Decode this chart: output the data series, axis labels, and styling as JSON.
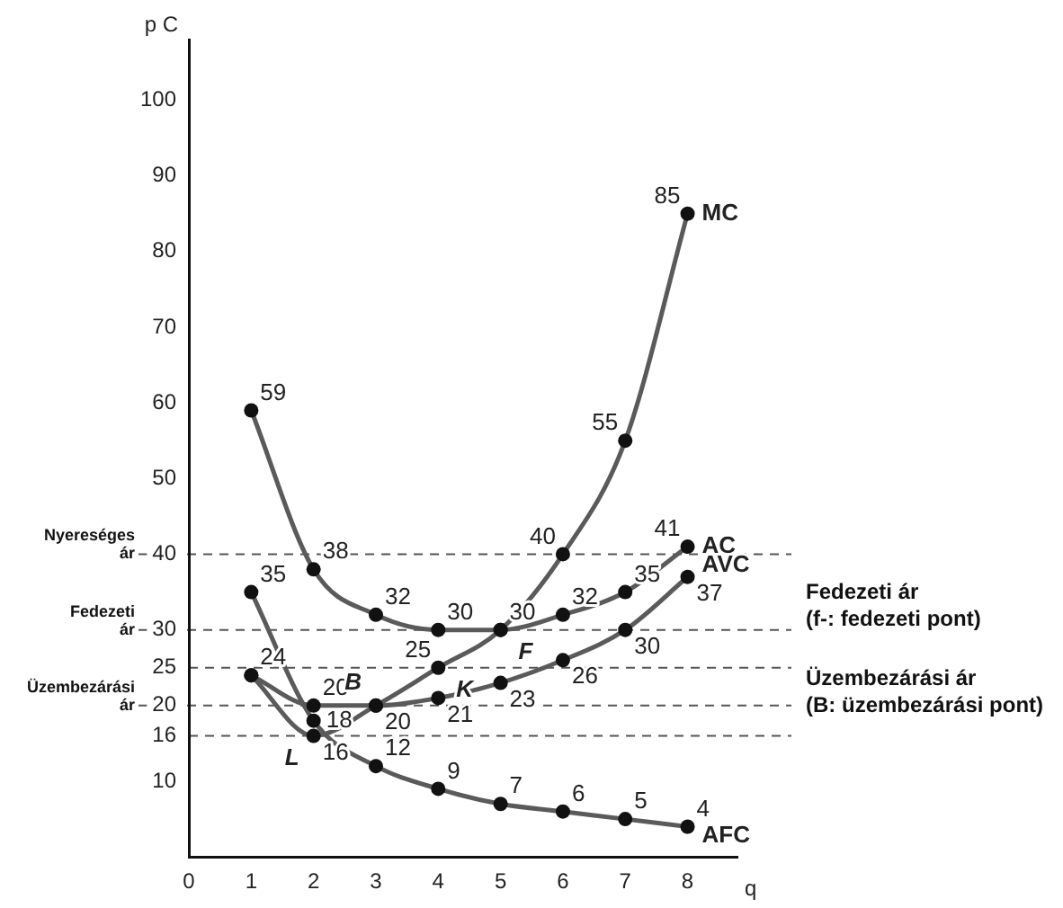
{
  "chart_data": {
    "type": "line",
    "xlabel": "q",
    "ylabel": "p C",
    "x": [
      1,
      2,
      3,
      4,
      5,
      6,
      7,
      8
    ],
    "series": [
      {
        "name": "MC",
        "color": "#5a5a5a",
        "values": [
          24,
          16,
          20,
          25,
          30,
          40,
          55,
          85
        ],
        "value_labels": [
          null,
          "16",
          null,
          "25",
          null,
          "40",
          "55",
          "85"
        ]
      },
      {
        "name": "AC",
        "color": "#5a5a5a",
        "values": [
          59,
          38,
          32,
          30,
          30,
          32,
          35,
          41
        ],
        "value_labels": [
          "59",
          "38",
          "32",
          "30",
          "30",
          "32",
          "35",
          "41"
        ]
      },
      {
        "name": "AVC",
        "color": "#5a5a5a",
        "values": [
          24,
          20,
          20,
          21,
          23,
          26,
          30,
          37
        ],
        "value_labels": [
          "24",
          "20",
          "20",
          "21",
          "23",
          "26",
          "30",
          "37"
        ]
      },
      {
        "name": "AFC",
        "color": "#5a5a5a",
        "values": [
          35,
          18,
          12,
          9,
          7,
          6,
          5,
          4
        ],
        "value_labels": [
          "35",
          "18",
          "12",
          "9",
          "7",
          "6",
          "5",
          "4"
        ]
      }
    ],
    "xlim": [
      0,
      8.8
    ],
    "xticks": [
      0,
      1,
      2,
      3,
      4,
      5,
      6,
      7,
      8
    ],
    "ylim": [
      0,
      108
    ],
    "yticks": [
      10,
      16,
      20,
      25,
      30,
      40,
      50,
      60,
      70,
      80,
      90,
      100
    ],
    "ref_lines": [
      {
        "axis": "y",
        "value": 40,
        "label": "Nyereséges ár",
        "line_style": "dashed"
      },
      {
        "axis": "y",
        "value": 30,
        "label": "Fedezeti ár",
        "line_style": "dashed"
      },
      {
        "axis": "y",
        "value": 25,
        "line_style": "dashed"
      },
      {
        "axis": "y",
        "value": 20,
        "label": "Üzembezárási ár",
        "line_style": "dashed"
      },
      {
        "axis": "y",
        "value": 16,
        "line_style": "dashed"
      }
    ],
    "annotations": [
      {
        "text": "B",
        "x": 3,
        "y": 20
      },
      {
        "text": "K",
        "x": 4,
        "y": 25
      },
      {
        "text": "F",
        "x": 5,
        "y": 30
      },
      {
        "text": "L",
        "x": 2,
        "y": 16
      },
      "Fedezeti ár (f-: fedezeti pont)",
      "Üzembezárási ár (B: üzembezárási pont)"
    ],
    "grid": false,
    "legend": false,
    "marker": "circle",
    "line_style": "solid"
  }
}
